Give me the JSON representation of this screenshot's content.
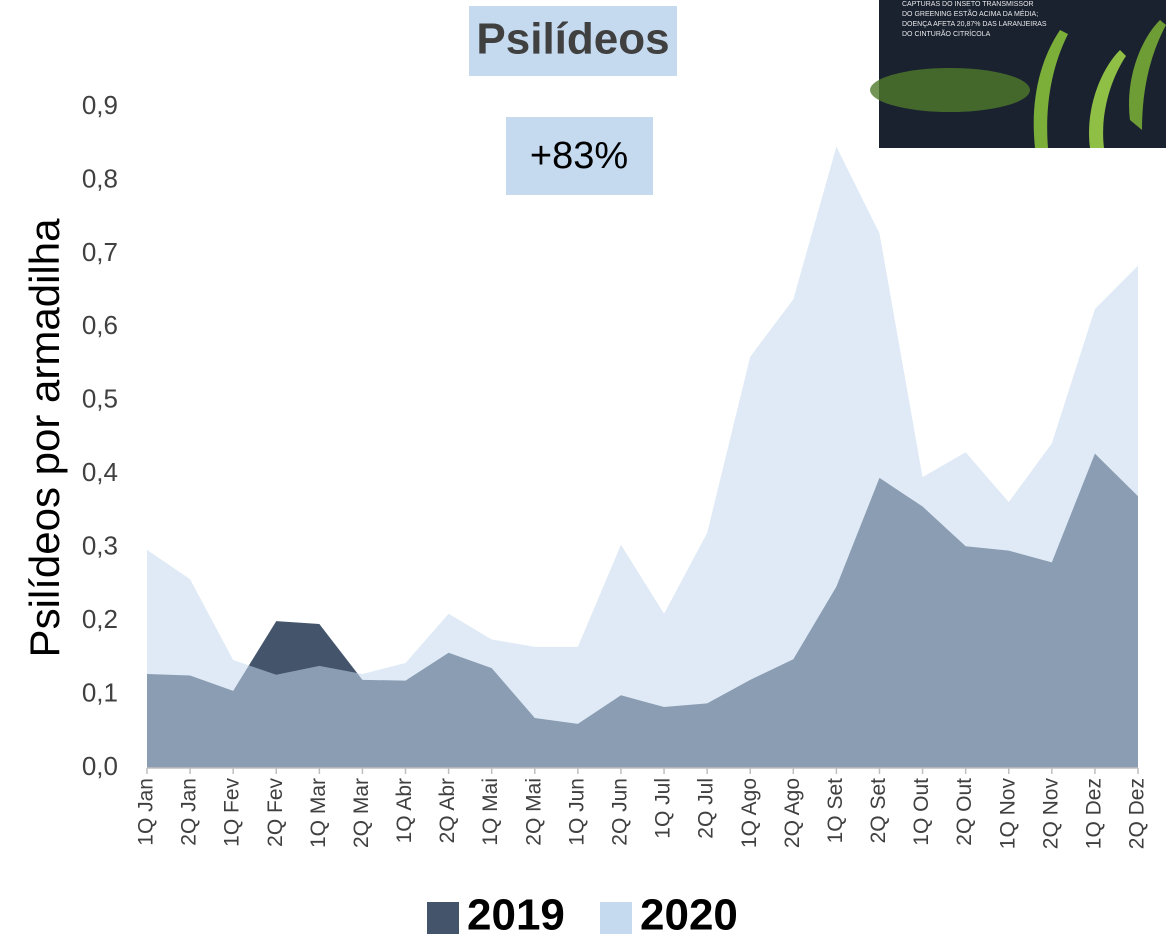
{
  "chart_data": {
    "type": "area",
    "title": "Psilídeos",
    "annotation": "+83%",
    "y_label": "Psilídeos por armadilha",
    "inset_text": [
      "CAPTURAS DO INSETO TRANSMISSOR",
      "DO GREENING ESTÃO ACIMA DA MÉDIA;",
      "DOENÇA AFETA 20,87% DAS LARANJEIRAS",
      "DO CINTURÃO CITRÍCOLA"
    ],
    "categories": [
      "1Q Jan",
      "2Q Jan",
      "1Q Fev",
      "2Q Fev",
      "1Q Mar",
      "2Q Mar",
      "1Q Abr",
      "2Q Abr",
      "1Q Mai",
      "2Q Mai",
      "1Q Jun",
      "2Q Jun",
      "1Q Jul",
      "2Q Jul",
      "1Q Ago",
      "2Q Ago",
      "1Q Set",
      "2Q Set",
      "1Q Out",
      "2Q Out",
      "1Q Nov",
      "2Q Nov",
      "1Q Dez",
      "2Q Dez"
    ],
    "series": [
      {
        "name": "2019",
        "color": "#44546a",
        "values": [
          0.128,
          0.126,
          0.105,
          0.2,
          0.196,
          0.12,
          0.119,
          0.157,
          0.136,
          0.068,
          0.06,
          0.099,
          0.083,
          0.088,
          0.12,
          0.148,
          0.247,
          0.395,
          0.356,
          0.302,
          0.296,
          0.28,
          0.428,
          0.37
        ]
      },
      {
        "name": "2020",
        "color": "#c5d9ef",
        "values": [
          0.297,
          0.257,
          0.147,
          0.127,
          0.139,
          0.128,
          0.143,
          0.21,
          0.175,
          0.165,
          0.165,
          0.304,
          0.21,
          0.32,
          0.56,
          0.638,
          0.846,
          0.728,
          0.396,
          0.43,
          0.362,
          0.442,
          0.625,
          0.684
        ]
      }
    ],
    "ylim": [
      0,
      0.9
    ],
    "yticks": [
      {
        "value": 0,
        "label": "0,0"
      },
      {
        "value": 0.1,
        "label": "0,1"
      },
      {
        "value": 0.2,
        "label": "0,2"
      },
      {
        "value": 0.3,
        "label": "0,3"
      },
      {
        "value": 0.4,
        "label": "0,4"
      },
      {
        "value": 0.5,
        "label": "0,5"
      },
      {
        "value": 0.6,
        "label": "0,6"
      },
      {
        "value": 0.7,
        "label": "0,7"
      },
      {
        "value": 0.8,
        "label": "0,8"
      },
      {
        "value": 0.9,
        "label": "0,9"
      }
    ]
  }
}
